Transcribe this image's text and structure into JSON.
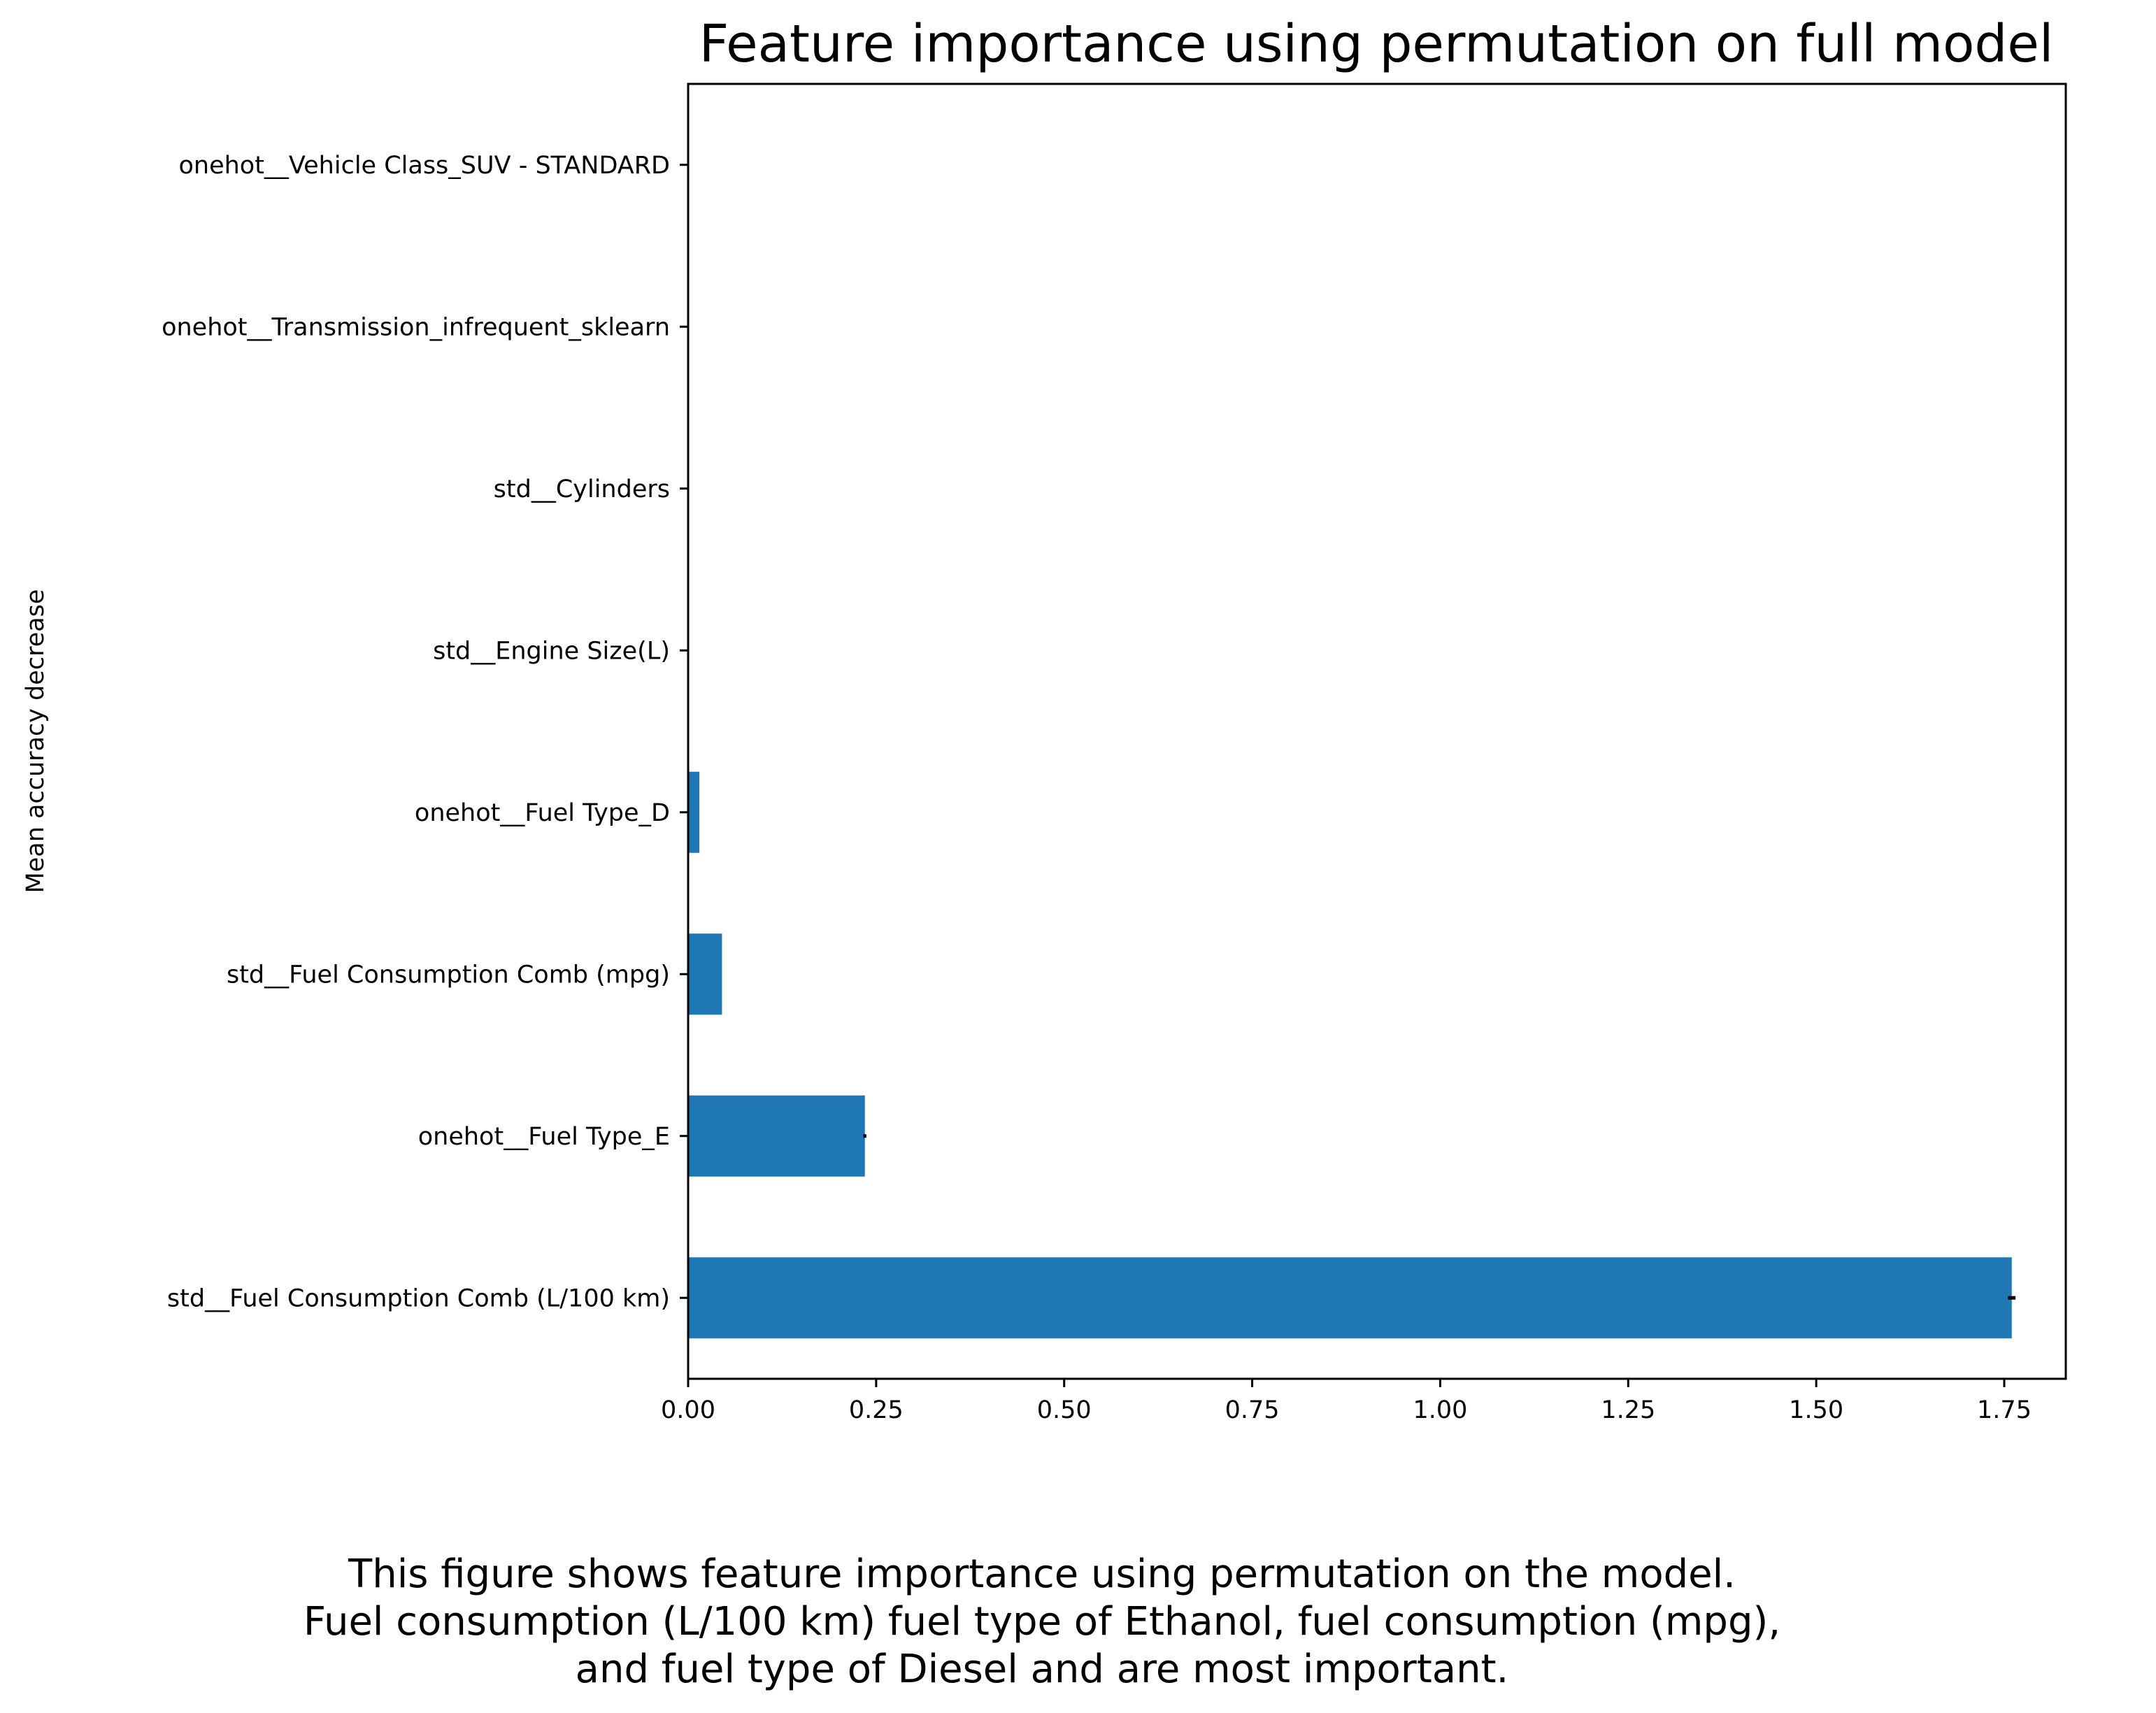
{
  "chart_data": {
    "type": "bar",
    "orientation": "horizontal",
    "title": "Feature importance using permutation on full model",
    "xlabel": "",
    "ylabel": "Mean accuracy decrease",
    "categories": [
      "std__Fuel Consumption Comb (L/100 km)",
      "onehot__Fuel Type_E",
      "std__Fuel Consumption Comb (mpg)",
      "onehot__Fuel Type_D",
      "std__Engine Size(L)",
      "std__Cylinders",
      "onehot__Transmission_infrequent_sklearn",
      "onehot__Vehicle Class_SUV - STANDARD"
    ],
    "values": [
      1.76,
      0.235,
      0.045,
      0.015,
      0.0,
      0.0,
      0.0,
      0.0
    ],
    "errors": [
      0.005,
      0.002,
      0.0,
      0.0,
      0.0,
      0.0,
      0.0,
      0.0
    ],
    "xticks": [
      "0.00",
      "0.25",
      "0.50",
      "0.75",
      "1.00",
      "1.25",
      "1.50",
      "1.75"
    ],
    "xlim": [
      0,
      1.85
    ],
    "grid": false,
    "legend": "none",
    "bar_color": "#1f77b4",
    "error_color": "#000000"
  },
  "caption": {
    "line1": "This figure shows feature importance using permutation on the model.",
    "line2": "Fuel consumption (L/100 km) fuel type of Ethanol, fuel consumption (mpg),",
    "line3": "and fuel type of Diesel and are most important."
  }
}
